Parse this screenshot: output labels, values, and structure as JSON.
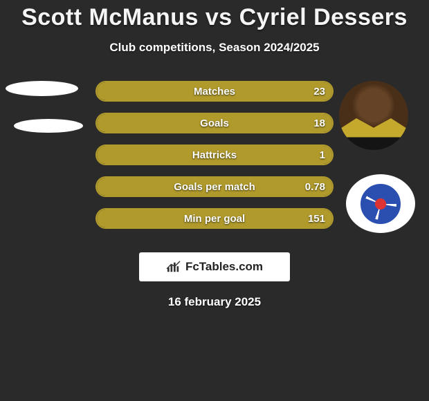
{
  "title": "Scott McManus vs Cyriel Dessers",
  "subtitle": "Club competitions, Season 2024/2025",
  "footer_date": "16 february 2025",
  "brand_text": "FcTables.com",
  "colors": {
    "bar_fill": "#b09a2c",
    "bar_border": "#b09a2c",
    "background": "#2a2a2a",
    "text": "#ffffff"
  },
  "left_player": {
    "name": "Scott McManus"
  },
  "right_player": {
    "name": "Cyriel Dessers",
    "club": "Rangers"
  },
  "stats": [
    {
      "label": "Matches",
      "right_value": "23",
      "fill_pct": 100
    },
    {
      "label": "Goals",
      "right_value": "18",
      "fill_pct": 100
    },
    {
      "label": "Hattricks",
      "right_value": "1",
      "fill_pct": 100
    },
    {
      "label": "Goals per match",
      "right_value": "0.78",
      "fill_pct": 100
    },
    {
      "label": "Min per goal",
      "right_value": "151",
      "fill_pct": 100
    }
  ]
}
